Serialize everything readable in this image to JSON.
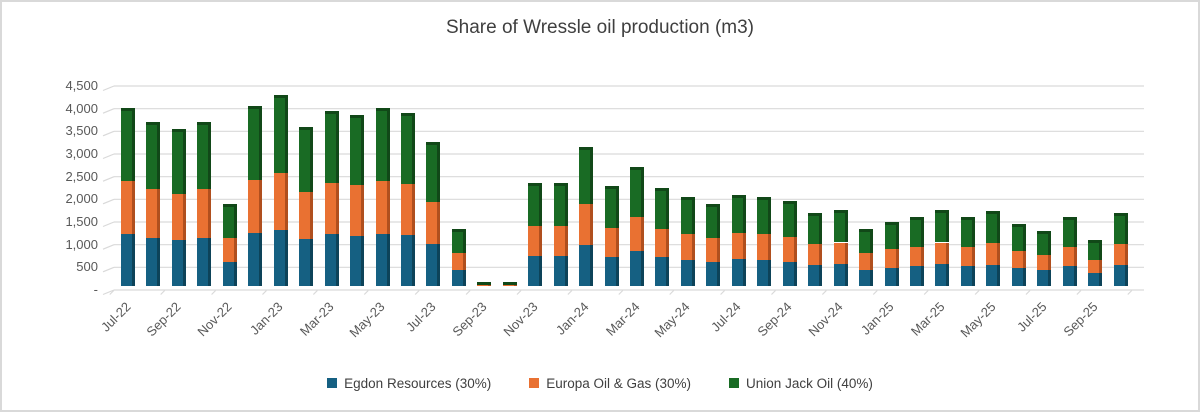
{
  "window": {
    "background": "#ffffff",
    "border_color": "#d9d9d9"
  },
  "chart_data": {
    "type": "bar",
    "stacked": true,
    "effect": "3d",
    "title": "Share of Wressle oil production (m3)",
    "xlabel": "",
    "ylabel": "",
    "ylim": [
      0,
      4500
    ],
    "y_tick_step": 500,
    "y_tick_labels": [
      "-",
      "500",
      "1,000",
      "1,500",
      "2,000",
      "2,500",
      "3,000",
      "3,500",
      "4,000",
      "4,500"
    ],
    "grid": true,
    "gridline_color": "#d9d9d9",
    "axis_label_color": "#595959",
    "title_color": "#3f3f3f",
    "legend_position": "bottom",
    "categories": [
      "Jul-22",
      "Aug-22",
      "Sep-22",
      "Oct-22",
      "Nov-22",
      "Dec-22",
      "Jan-23",
      "Feb-23",
      "Mar-23",
      "Apr-23",
      "May-23",
      "Jun-23",
      "Jul-23",
      "Aug-23",
      "Sep-23",
      "Oct-23",
      "Nov-23",
      "Dec-23",
      "Jan-24",
      "Feb-24",
      "Mar-24",
      "Apr-24",
      "May-24",
      "Jun-24",
      "Jul-24",
      "Aug-24",
      "Sep-24",
      "Oct-24",
      "Nov-24",
      "Dec-24",
      "Jan-25",
      "Feb-25",
      "Mar-25",
      "Apr-25",
      "May-25",
      "Jun-25",
      "Jul-25",
      "Aug-25",
      "Sep-25",
      "Oct-25"
    ],
    "x_tick_every": 2,
    "x_tick_labels": [
      "Jul-22",
      "Sep-22",
      "Nov-22",
      "Jan-23",
      "Mar-23",
      "May-23",
      "Jul-23",
      "Sep-23",
      "Nov-23",
      "Jan-24",
      "Mar-24",
      "May-24",
      "Jul-24",
      "Sep-24",
      "Nov-24",
      "Jan-25",
      "Mar-25",
      "May-25",
      "Jul-25",
      "Sep-25"
    ],
    "series": [
      {
        "name": "Egdon Resources (30%)",
        "color": "#156082",
        "side_color": "#0d4359",
        "values": [
          1155,
          1065,
          1020,
          1065,
          525,
          1170,
          1245,
          1035,
          1140,
          1110,
          1155,
          1125,
          930,
          360,
          9,
          9,
          660,
          660,
          900,
          645,
          765,
          630,
          570,
          525,
          585,
          570,
          540,
          465,
          480,
          360,
          405,
          435,
          480,
          435,
          474,
          390,
          345,
          435,
          285,
          465
        ]
      },
      {
        "name": "Europa Oil & Gas (30%)",
        "color": "#e97132",
        "side_color": "#b04f1e",
        "values": [
          1155,
          1065,
          1020,
          1065,
          525,
          1170,
          1245,
          1035,
          1140,
          1110,
          1155,
          1125,
          930,
          360,
          9,
          9,
          660,
          660,
          900,
          645,
          765,
          630,
          570,
          525,
          585,
          570,
          540,
          465,
          480,
          360,
          405,
          435,
          480,
          435,
          474,
          390,
          345,
          435,
          285,
          465
        ]
      },
      {
        "name": "Union Jack Oil (40%)",
        "color": "#196b24",
        "side_color": "#114818",
        "values": [
          1540,
          1420,
          1360,
          1420,
          700,
          1560,
          1660,
          1380,
          1520,
          1480,
          1540,
          1500,
          1240,
          480,
          12,
          12,
          880,
          880,
          1200,
          860,
          1020,
          840,
          760,
          700,
          780,
          760,
          720,
          620,
          640,
          480,
          540,
          580,
          640,
          580,
          632,
          520,
          460,
          580,
          380,
          620
        ]
      }
    ]
  }
}
